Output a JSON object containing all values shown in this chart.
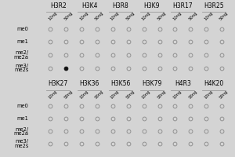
{
  "panel1": {
    "col_groups": [
      "H3R2",
      "H3K4",
      "H3R8",
      "H3K9",
      "H3R17",
      "H3R25"
    ],
    "row_labels": [
      "me0",
      "me1",
      "me2/\nme2a",
      "me3/\nme2s"
    ],
    "sub_cols": [
      "10ng",
      "50ng"
    ],
    "black_dot_row": 3,
    "black_dot_group": 0,
    "black_dot_sub": 1
  },
  "panel2": {
    "col_groups": [
      "H3K27",
      "H3K36",
      "H3K56",
      "H3K79",
      "H4R3",
      "H4K20"
    ],
    "row_labels": [
      "me0",
      "me1",
      "me2/\nme2a",
      "me3/\nme2s"
    ],
    "sub_cols": [
      "10ng",
      "50ng"
    ]
  },
  "bg_color": "#d4d4d4",
  "panel_bg": "#d4d4d4",
  "dot_edge_color": "#888888",
  "dot_face_color": "#d4d4d4",
  "dot_black_face": "#111111",
  "dot_black_edge": "#111111",
  "dot_size": 3.5,
  "dot_edge_width": 0.6,
  "line_color": "#999999",
  "tick_fontsize": 3.8,
  "label_fontsize": 4.8,
  "group_fontsize": 5.5
}
